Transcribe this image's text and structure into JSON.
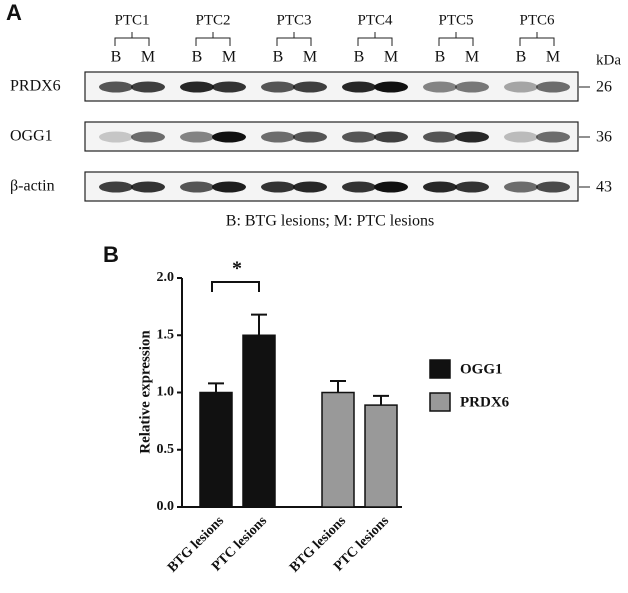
{
  "panel_a": {
    "label": "A",
    "samples": [
      {
        "name": "PTC1",
        "lanes": [
          "B",
          "M"
        ]
      },
      {
        "name": "PTC2",
        "lanes": [
          "B",
          "M"
        ]
      },
      {
        "name": "PTC3",
        "lanes": [
          "B",
          "M"
        ]
      },
      {
        "name": "PTC4",
        "lanes": [
          "B",
          "M"
        ]
      },
      {
        "name": "PTC5",
        "lanes": [
          "B",
          "M"
        ]
      },
      {
        "name": "PTC6",
        "lanes": [
          "B",
          "M"
        ]
      }
    ],
    "kda_unit": "kDa",
    "rows": [
      {
        "name": "PRDX6",
        "kda": 26
      },
      {
        "name": "OGG1",
        "kda": 36
      },
      {
        "name": "β-actin",
        "kda": 43
      }
    ],
    "caption": "B: BTG lesions; M: PTC lesions"
  },
  "panel_b_label": "B",
  "chart_data": {
    "type": "bar",
    "y_label": "Relative expression",
    "categories": [
      "BTG lesions",
      "PTC lesions",
      "BTG lesions",
      "PTC lesions"
    ],
    "series": [
      {
        "name": "OGG1",
        "color": "#111111",
        "values": [
          1.0,
          1.5,
          null,
          null
        ],
        "errors": [
          0.08,
          0.18,
          null,
          null
        ]
      },
      {
        "name": "PRDX6",
        "color": "#999999",
        "values": [
          null,
          null,
          1.0,
          0.89
        ],
        "errors": [
          null,
          null,
          0.1,
          0.08
        ]
      }
    ],
    "ylim": [
      0,
      2
    ],
    "yticks": [
      {
        "value": 0,
        "label": "0.0"
      },
      0.5,
      {
        "value": 1,
        "label": "1.0"
      },
      1.5,
      {
        "value": 2,
        "label": "2.0"
      }
    ],
    "annotation": "*",
    "legend": "right"
  }
}
